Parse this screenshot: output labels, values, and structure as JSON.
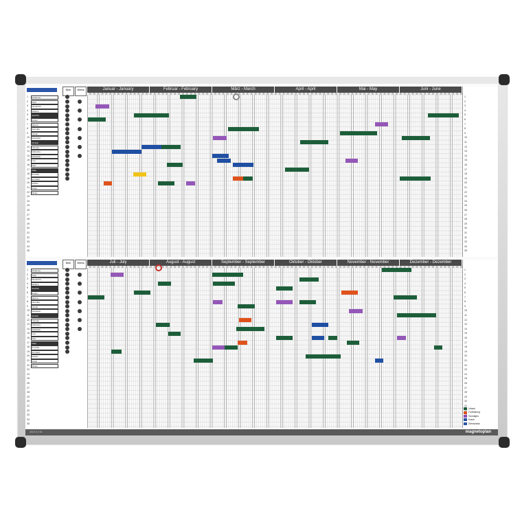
{
  "board": {
    "brand": "magnetoplan",
    "small_print": "2013 0 2 91",
    "header_labels": {
      "month_col": "Mon",
      "week_col": "Week"
    }
  },
  "panels": [
    {
      "id": "top",
      "months": [
        "Januar - January",
        "Februar - February",
        "März - March",
        "April - April",
        "Mai - May",
        "Juni - June"
      ]
    },
    {
      "id": "bottom",
      "months": [
        "Juli - July",
        "August - August",
        "September - September",
        "Oktober - Oktober",
        "November - November",
        "Dezember - Dezember"
      ]
    }
  ],
  "row_numbers": [
    "1",
    "2",
    "3",
    "4",
    "5",
    "6",
    "7",
    "8",
    "9",
    "10",
    "11",
    "12",
    "13",
    "14",
    "15",
    "16",
    "17",
    "18",
    "19",
    "20",
    "21",
    "22",
    "23",
    "24",
    "25",
    "26",
    "27",
    "28",
    "29",
    "30",
    "31",
    "32",
    "33",
    "34",
    "35"
  ],
  "legend": [
    {
      "label": "Urlaub",
      "color": "#1d5e3a"
    },
    {
      "label": "Fortbildung",
      "color": "#e0521c"
    },
    {
      "label": "Sonstiges",
      "color": "#8e4db3"
    },
    {
      "label": "Krank",
      "color": "#1f4fa3"
    },
    {
      "label": "Dienstreise",
      "color": "#2a55a8"
    }
  ],
  "colors": {
    "green": "#1d5e3a",
    "orange": "#e0521c",
    "purple": "#9457b8",
    "blue": "#1f4fa3",
    "yellow": "#f0c419"
  },
  "strips": {
    "top": [
      {
        "row": 1,
        "start": 0.248,
        "len": 0.044,
        "color": "green"
      },
      {
        "row": 3,
        "start": 0.022,
        "len": 0.036,
        "color": "purple"
      },
      {
        "row": 5,
        "start": 0.124,
        "len": 0.094,
        "color": "green"
      },
      {
        "row": 5,
        "start": 0.908,
        "len": 0.082,
        "color": "green"
      },
      {
        "row": 6,
        "start": 0.002,
        "len": 0.048,
        "color": "green"
      },
      {
        "row": 7,
        "start": 0.768,
        "len": 0.034,
        "color": "purple"
      },
      {
        "row": 8,
        "start": 0.376,
        "len": 0.082,
        "color": "green"
      },
      {
        "row": 9,
        "start": 0.674,
        "len": 0.098,
        "color": "green"
      },
      {
        "row": 10,
        "start": 0.336,
        "len": 0.036,
        "color": "purple"
      },
      {
        "row": 10,
        "start": 0.838,
        "len": 0.076,
        "color": "green"
      },
      {
        "row": 11,
        "start": 0.568,
        "len": 0.074,
        "color": "green"
      },
      {
        "row": 12,
        "start": 0.144,
        "len": 0.058,
        "color": "blue"
      },
      {
        "row": 12,
        "start": 0.198,
        "len": 0.034,
        "color": "green"
      },
      {
        "row": 12,
        "start": 0.218,
        "len": 0.032,
        "color": "green"
      },
      {
        "row": 13,
        "start": 0.066,
        "len": 0.078,
        "color": "blue"
      },
      {
        "row": 14,
        "start": 0.334,
        "len": 0.044,
        "color": "blue"
      },
      {
        "row": 15,
        "start": 0.346,
        "len": 0.036,
        "color": "blue"
      },
      {
        "row": 15,
        "start": 0.688,
        "len": 0.034,
        "color": "purple"
      },
      {
        "row": 16,
        "start": 0.212,
        "len": 0.042,
        "color": "green"
      },
      {
        "row": 16,
        "start": 0.388,
        "len": 0.056,
        "color": "blue"
      },
      {
        "row": 17,
        "start": 0.528,
        "len": 0.064,
        "color": "green"
      },
      {
        "row": 18,
        "start": 0.122,
        "len": 0.036,
        "color": "yellow"
      },
      {
        "row": 19,
        "start": 0.388,
        "len": 0.034,
        "color": "orange"
      },
      {
        "row": 19,
        "start": 0.416,
        "len": 0.026,
        "color": "green"
      },
      {
        "row": 20,
        "start": 0.188,
        "len": 0.044,
        "color": "green"
      },
      {
        "row": 20,
        "start": 0.264,
        "len": 0.024,
        "color": "purple"
      },
      {
        "row": 20,
        "start": 0.044,
        "len": 0.022,
        "color": "orange"
      },
      {
        "row": 19,
        "start": 0.834,
        "len": 0.082,
        "color": "green"
      }
    ],
    "bottom": [
      {
        "row": 1,
        "start": 0.786,
        "len": 0.078,
        "color": "green"
      },
      {
        "row": 2,
        "start": 0.062,
        "len": 0.036,
        "color": "purple"
      },
      {
        "row": 2,
        "start": 0.334,
        "len": 0.082,
        "color": "green"
      },
      {
        "row": 3,
        "start": 0.566,
        "len": 0.052,
        "color": "green"
      },
      {
        "row": 4,
        "start": 0.188,
        "len": 0.036,
        "color": "green"
      },
      {
        "row": 4,
        "start": 0.336,
        "len": 0.058,
        "color": "green"
      },
      {
        "row": 5,
        "start": 0.504,
        "len": 0.044,
        "color": "green"
      },
      {
        "row": 6,
        "start": 0.124,
        "len": 0.044,
        "color": "green"
      },
      {
        "row": 6,
        "start": 0.678,
        "len": 0.044,
        "color": "orange"
      },
      {
        "row": 7,
        "start": 0.002,
        "len": 0.044,
        "color": "green"
      },
      {
        "row": 7,
        "start": 0.816,
        "len": 0.064,
        "color": "green"
      },
      {
        "row": 8,
        "start": 0.336,
        "len": 0.024,
        "color": "purple"
      },
      {
        "row": 8,
        "start": 0.504,
        "len": 0.044,
        "color": "purple"
      },
      {
        "row": 8,
        "start": 0.566,
        "len": 0.044,
        "color": "green"
      },
      {
        "row": 9,
        "start": 0.402,
        "len": 0.044,
        "color": "green"
      },
      {
        "row": 10,
        "start": 0.698,
        "len": 0.036,
        "color": "purple"
      },
      {
        "row": 11,
        "start": 0.826,
        "len": 0.104,
        "color": "green"
      },
      {
        "row": 12,
        "start": 0.404,
        "len": 0.034,
        "color": "orange"
      },
      {
        "row": 13,
        "start": 0.184,
        "len": 0.036,
        "color": "green"
      },
      {
        "row": 13,
        "start": 0.598,
        "len": 0.044,
        "color": "blue"
      },
      {
        "row": 14,
        "start": 0.398,
        "len": 0.074,
        "color": "green"
      },
      {
        "row": 15,
        "start": 0.216,
        "len": 0.034,
        "color": "green"
      },
      {
        "row": 16,
        "start": 0.504,
        "len": 0.044,
        "color": "green"
      },
      {
        "row": 16,
        "start": 0.598,
        "len": 0.034,
        "color": "blue"
      },
      {
        "row": 16,
        "start": 0.642,
        "len": 0.024,
        "color": "green"
      },
      {
        "row": 16,
        "start": 0.826,
        "len": 0.024,
        "color": "purple"
      },
      {
        "row": 17,
        "start": 0.402,
        "len": 0.024,
        "color": "orange"
      },
      {
        "row": 17,
        "start": 0.692,
        "len": 0.034,
        "color": "green"
      },
      {
        "row": 18,
        "start": 0.334,
        "len": 0.034,
        "color": "purple"
      },
      {
        "row": 18,
        "start": 0.366,
        "len": 0.036,
        "color": "green"
      },
      {
        "row": 18,
        "start": 0.924,
        "len": 0.022,
        "color": "green"
      },
      {
        "row": 19,
        "start": 0.064,
        "len": 0.028,
        "color": "green"
      },
      {
        "row": 20,
        "start": 0.582,
        "len": 0.094,
        "color": "green"
      },
      {
        "row": 21,
        "start": 0.284,
        "len": 0.052,
        "color": "green"
      },
      {
        "row": 21,
        "start": 0.768,
        "len": 0.022,
        "color": "blue"
      }
    ]
  },
  "top_names": [
    "Johannes",
    "Peter",
    "Alexandra",
    "Melanie",
    "Joachim",
    "Daniel",
    "Marcus",
    "Veronika",
    "Florian",
    "Sebastian",
    "Christin",
    "Thomas",
    "Katharina",
    "Sebastian",
    "Lisa",
    "Paul",
    "Katja",
    "Dominik",
    "Hermann",
    "Sophie",
    "Sonja",
    "Miriam"
  ],
  "bottom_names": [
    "Johannes",
    "Peter",
    "Alexandra",
    "Melanie",
    "Joachim",
    "Daniel",
    "Marcus",
    "Veronika",
    "Florian",
    "Sebastian",
    "Christin",
    "Thomas",
    "Katharina",
    "Sebastian",
    "Lisa",
    "Paul",
    "Katja",
    "Dominik",
    "Hermann",
    "Sophie",
    "Sonja",
    "Miriam"
  ]
}
